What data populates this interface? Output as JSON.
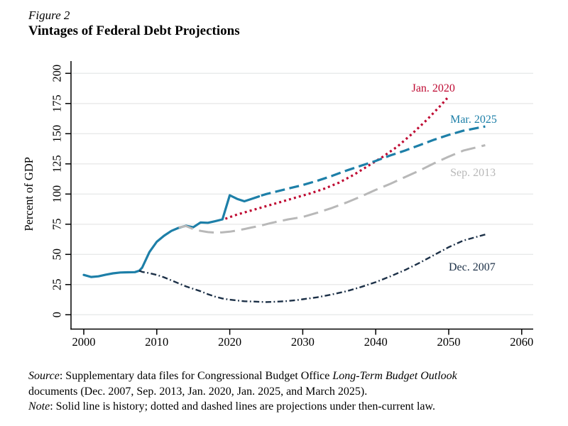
{
  "figure": {
    "label": "Figure 2",
    "title": "Vintages of Federal Debt Projections"
  },
  "chart_data": {
    "type": "line",
    "title": "Vintages of Federal Debt Projections",
    "xlabel": "",
    "ylabel": "Percent of GDP",
    "x_ticks": [
      2000,
      2010,
      2020,
      2030,
      2040,
      2050,
      2060
    ],
    "y_ticks": [
      0,
      25,
      50,
      75,
      100,
      125,
      150,
      175,
      200
    ],
    "xlim": [
      1998.3,
      2061.5
    ],
    "ylim": [
      0,
      200
    ],
    "grid": true,
    "legend_position": "inline-annotations",
    "colors": {
      "grid": "#e8eaea",
      "axis": "#000000"
    },
    "series": [
      {
        "id": "history",
        "name": "History (solid)",
        "style": "solid",
        "color": "#1d7fa8",
        "points": [
          [
            2000,
            33
          ],
          [
            2001,
            31.3
          ],
          [
            2002,
            31.8
          ],
          [
            2003,
            33.2
          ],
          [
            2004,
            34.3
          ],
          [
            2005,
            35
          ],
          [
            2006,
            35.2
          ],
          [
            2007,
            35.3
          ],
          [
            2007.6,
            36.5
          ],
          [
            2008,
            39
          ],
          [
            2009,
            52
          ],
          [
            2010,
            60.5
          ],
          [
            2011,
            65.5
          ],
          [
            2012,
            69.5
          ],
          [
            2013,
            72
          ],
          [
            2014,
            73.7
          ],
          [
            2015,
            72.5
          ],
          [
            2016,
            76.5
          ],
          [
            2017,
            76.2
          ],
          [
            2018,
            77.5
          ],
          [
            2019,
            79
          ],
          [
            2020,
            99
          ],
          [
            2021,
            96
          ],
          [
            2022,
            94
          ],
          [
            2023,
            96
          ],
          [
            2024,
            98
          ]
        ]
      },
      {
        "id": "dec-2007",
        "name": "Dec. 2007",
        "style": "dashdot",
        "color": "#1c3047",
        "points": [
          [
            2007.6,
            36.5
          ],
          [
            2008,
            35.5
          ],
          [
            2009,
            34.5
          ],
          [
            2010,
            33
          ],
          [
            2011,
            31
          ],
          [
            2012,
            28.5
          ],
          [
            2013,
            26
          ],
          [
            2014,
            23.5
          ],
          [
            2015,
            21.5
          ],
          [
            2016,
            19.5
          ],
          [
            2017,
            17
          ],
          [
            2018,
            15
          ],
          [
            2019,
            13.5
          ],
          [
            2020,
            12.5
          ],
          [
            2021,
            11.8
          ],
          [
            2022,
            11.2
          ],
          [
            2023,
            11
          ],
          [
            2024,
            10.7
          ],
          [
            2025,
            10.5
          ],
          [
            2026,
            10.7
          ],
          [
            2027,
            11
          ],
          [
            2028,
            11.4
          ],
          [
            2029,
            12
          ],
          [
            2030,
            12.8
          ],
          [
            2032,
            14.5
          ],
          [
            2034,
            16.8
          ],
          [
            2036,
            19.5
          ],
          [
            2038,
            23
          ],
          [
            2040,
            27
          ],
          [
            2042,
            31.8
          ],
          [
            2044,
            37
          ],
          [
            2046,
            43
          ],
          [
            2048,
            49.5
          ],
          [
            2050,
            56
          ],
          [
            2052,
            61.5
          ],
          [
            2055,
            66.5
          ]
        ]
      },
      {
        "id": "sep-2013",
        "name": "Sep. 2013",
        "style": "longdash",
        "color": "#b8b8b8",
        "points": [
          [
            2013,
            72.3
          ],
          [
            2014,
            73.5
          ],
          [
            2015,
            71
          ],
          [
            2016,
            69.5
          ],
          [
            2017,
            68.5
          ],
          [
            2018,
            68
          ],
          [
            2019,
            68.3
          ],
          [
            2020,
            68.8
          ],
          [
            2021,
            69.8
          ],
          [
            2022,
            71
          ],
          [
            2023,
            72.3
          ],
          [
            2024,
            73.5
          ],
          [
            2025,
            75
          ],
          [
            2026,
            76.5
          ],
          [
            2028,
            79
          ],
          [
            2030,
            81
          ],
          [
            2032,
            84.5
          ],
          [
            2034,
            88.5
          ],
          [
            2036,
            93
          ],
          [
            2038,
            98
          ],
          [
            2040,
            103.5
          ],
          [
            2042,
            108.5
          ],
          [
            2044,
            114
          ],
          [
            2046,
            119.5
          ],
          [
            2048,
            125.5
          ],
          [
            2050,
            131
          ],
          [
            2052,
            136
          ],
          [
            2055,
            140.5
          ]
        ]
      },
      {
        "id": "jan-2020",
        "name": "Jan. 2020",
        "style": "dotted",
        "color": "#bf0b33",
        "points": [
          [
            2019.4,
            79.5
          ],
          [
            2021,
            83
          ],
          [
            2023,
            86.5
          ],
          [
            2025,
            90
          ],
          [
            2027,
            93.5
          ],
          [
            2029,
            97
          ],
          [
            2031,
            100.5
          ],
          [
            2033,
            104.5
          ],
          [
            2035,
            109.5
          ],
          [
            2037,
            116
          ],
          [
            2039,
            123.5
          ],
          [
            2041,
            131
          ],
          [
            2043,
            139.5
          ],
          [
            2045,
            150
          ],
          [
            2047,
            161.5
          ],
          [
            2049,
            174
          ],
          [
            2049.8,
            179.5
          ]
        ]
      },
      {
        "id": "mar-2025",
        "name": "Mar. 2025",
        "style": "dashed",
        "color": "#1d7fa8",
        "points": [
          [
            2024.3,
            98.7
          ],
          [
            2025,
            100
          ],
          [
            2026,
            101.5
          ],
          [
            2027,
            103
          ],
          [
            2028,
            104.5
          ],
          [
            2030,
            107.5
          ],
          [
            2032,
            111
          ],
          [
            2034,
            115
          ],
          [
            2036,
            119.5
          ],
          [
            2038,
            123.5
          ],
          [
            2040,
            127.5
          ],
          [
            2042,
            132
          ],
          [
            2044,
            136
          ],
          [
            2046,
            140.5
          ],
          [
            2048,
            145
          ],
          [
            2050,
            149
          ],
          [
            2052,
            152.5
          ],
          [
            2055,
            156
          ]
        ]
      }
    ],
    "annotations": [
      {
        "series": "jan-2020",
        "text": "Jan. 2020",
        "x": 2044.9,
        "y": 185,
        "color": "#bf0b33"
      },
      {
        "series": "mar-2025",
        "text": "Mar. 2025",
        "x": 2050.2,
        "y": 159,
        "color": "#1d7fa8"
      },
      {
        "series": "sep-2013",
        "text": "Sep. 2013",
        "x": 2050.2,
        "y": 115,
        "color": "#b8b8b8"
      },
      {
        "series": "dec-2007",
        "text": "Dec. 2007",
        "x": 2050.0,
        "y": 36.6,
        "color": "#1c3047"
      }
    ]
  },
  "footer": {
    "source_label": "Source",
    "source_pre": ": Supplementary data files for Congressional Budget Office ",
    "source_italic": "Long-Term Budget Outlook",
    "source_post": "documents (Dec. 2007, Sep. 2013, Jan. 2020, Jan. 2025, and March 2025).",
    "note_label": "Note",
    "note_text": ": Solid line is history; dotted and dashed lines are projections under then-current law."
  }
}
